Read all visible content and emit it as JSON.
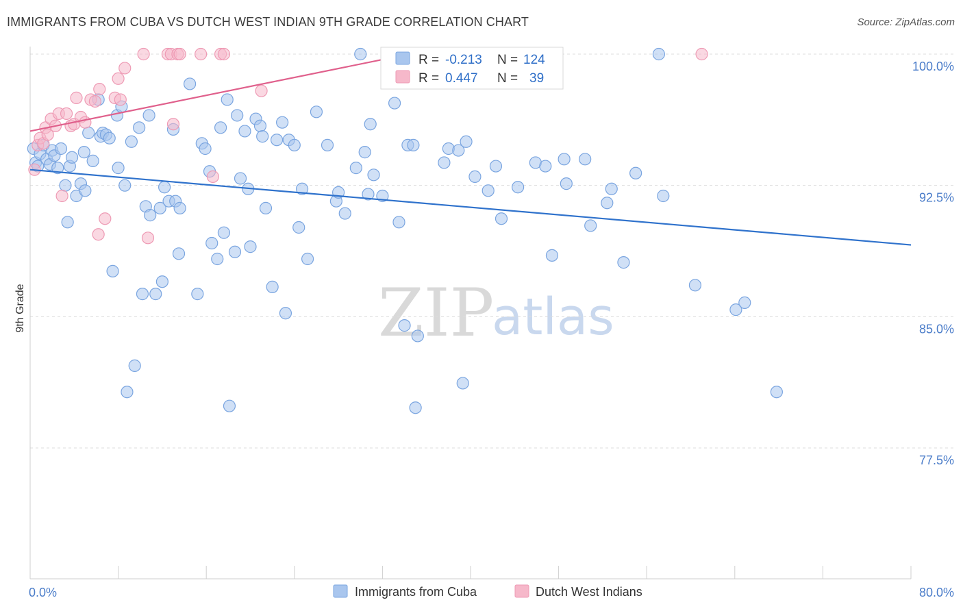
{
  "title": "IMMIGRANTS FROM CUBA VS DUTCH WEST INDIAN 9TH GRADE CORRELATION CHART",
  "source": "Source: ZipAtlas.com",
  "watermark": {
    "zip": "ZIP",
    "atlas": "atlas"
  },
  "colors": {
    "blue_fill": "#a9c6ee",
    "blue_stroke": "#7aa5e0",
    "blue_line": "#2f72cc",
    "pink_fill": "#f6b8ca",
    "pink_stroke": "#ee9ab4",
    "pink_line": "#e0608c",
    "tick_text": "#4a7cc9",
    "grid": "#dcdcdc"
  },
  "legend_stats": [
    {
      "r_label": "R =",
      "r_value": "-0.213",
      "n_label": "N =",
      "n_value": "124",
      "series": "blue"
    },
    {
      "r_label": "R =",
      "r_value": "0.447",
      "n_label": "N =",
      "n_value": "39",
      "series": "pink"
    }
  ],
  "bottom_legend": [
    "Immigrants from Cuba",
    "Dutch West Indians"
  ],
  "chart_data": {
    "type": "scatter",
    "title": "IMMIGRANTS FROM CUBA VS DUTCH WEST INDIAN 9TH GRADE CORRELATION CHART",
    "xlabel": "",
    "ylabel": "9th Grade",
    "xlim": [
      0,
      80
    ],
    "ylim": [
      70.0,
      101.5
    ],
    "x_tick_labels": [
      {
        "value": 0,
        "label": "0.0%"
      },
      {
        "value": 80,
        "label": "80.0%"
      }
    ],
    "y_tick_labels": [
      {
        "value": 100.0,
        "label": "100.0%"
      },
      {
        "value": 92.5,
        "label": "92.5%"
      },
      {
        "value": 85.0,
        "label": "85.0%"
      },
      {
        "value": 77.5,
        "label": "77.5%"
      }
    ],
    "series": [
      {
        "name": "Immigrants from Cuba",
        "color": "blue",
        "trend": {
          "x": [
            0,
            80
          ],
          "y": [
            93.4,
            89.1
          ]
        },
        "points": [
          [
            0.3,
            94.6
          ],
          [
            0.5,
            93.8
          ],
          [
            0.7,
            93.6
          ],
          [
            0.9,
            94.3
          ],
          [
            1.2,
            94.8
          ],
          [
            1.5,
            94.0
          ],
          [
            1.8,
            93.7
          ],
          [
            2.0,
            94.5
          ],
          [
            2.2,
            94.2
          ],
          [
            2.5,
            93.5
          ],
          [
            2.8,
            94.6
          ],
          [
            3.2,
            92.5
          ],
          [
            3.4,
            90.4
          ],
          [
            3.6,
            93.6
          ],
          [
            3.8,
            94.1
          ],
          [
            4.2,
            91.9
          ],
          [
            4.6,
            92.6
          ],
          [
            4.9,
            94.4
          ],
          [
            5.0,
            92.2
          ],
          [
            5.3,
            95.5
          ],
          [
            5.7,
            93.9
          ],
          [
            6.2,
            97.4
          ],
          [
            6.4,
            95.3
          ],
          [
            6.6,
            95.5
          ],
          [
            6.9,
            95.4
          ],
          [
            7.2,
            95.2
          ],
          [
            7.5,
            87.6
          ],
          [
            7.9,
            96.5
          ],
          [
            8.0,
            93.5
          ],
          [
            8.3,
            97.0
          ],
          [
            8.6,
            92.5
          ],
          [
            8.8,
            80.7
          ],
          [
            9.2,
            95.0
          ],
          [
            9.5,
            82.2
          ],
          [
            9.9,
            95.8
          ],
          [
            10.2,
            86.3
          ],
          [
            10.5,
            91.3
          ],
          [
            10.8,
            96.5
          ],
          [
            10.9,
            90.8
          ],
          [
            11.4,
            86.3
          ],
          [
            11.8,
            91.2
          ],
          [
            12.0,
            87.0
          ],
          [
            12.2,
            92.4
          ],
          [
            12.6,
            91.6
          ],
          [
            13.0,
            95.7
          ],
          [
            13.2,
            91.6
          ],
          [
            13.5,
            88.6
          ],
          [
            13.6,
            91.2
          ],
          [
            14.5,
            98.3
          ],
          [
            15.2,
            86.3
          ],
          [
            15.6,
            94.9
          ],
          [
            15.9,
            94.6
          ],
          [
            16.3,
            93.3
          ],
          [
            16.5,
            89.2
          ],
          [
            17.0,
            88.3
          ],
          [
            17.3,
            95.8
          ],
          [
            17.6,
            89.8
          ],
          [
            17.9,
            97.4
          ],
          [
            18.1,
            79.9
          ],
          [
            18.6,
            88.7
          ],
          [
            18.8,
            96.5
          ],
          [
            19.1,
            92.9
          ],
          [
            19.5,
            95.6
          ],
          [
            19.8,
            92.3
          ],
          [
            20.0,
            89.0
          ],
          [
            20.5,
            96.3
          ],
          [
            20.9,
            95.9
          ],
          [
            21.1,
            95.3
          ],
          [
            21.4,
            91.2
          ],
          [
            22.0,
            86.7
          ],
          [
            22.4,
            95.1
          ],
          [
            22.9,
            96.1
          ],
          [
            23.2,
            85.2
          ],
          [
            23.5,
            95.1
          ],
          [
            24.0,
            94.8
          ],
          [
            24.4,
            90.1
          ],
          [
            24.7,
            92.3
          ],
          [
            25.2,
            88.3
          ],
          [
            26.0,
            96.7
          ],
          [
            27.0,
            94.8
          ],
          [
            27.8,
            91.6
          ],
          [
            28.0,
            92.1
          ],
          [
            28.6,
            90.9
          ],
          [
            29.6,
            93.5
          ],
          [
            30.0,
            100.0
          ],
          [
            30.4,
            94.4
          ],
          [
            30.7,
            92.0
          ],
          [
            30.9,
            96.0
          ],
          [
            31.2,
            93.1
          ],
          [
            32.0,
            91.9
          ],
          [
            33.1,
            97.2
          ],
          [
            33.5,
            90.4
          ],
          [
            34.0,
            84.5
          ],
          [
            34.3,
            94.8
          ],
          [
            34.8,
            94.8
          ],
          [
            35.0,
            79.8
          ],
          [
            35.2,
            83.9
          ],
          [
            37.6,
            93.8
          ],
          [
            38.0,
            94.6
          ],
          [
            38.9,
            94.5
          ],
          [
            39.3,
            81.2
          ],
          [
            39.6,
            95.0
          ],
          [
            40.4,
            93.0
          ],
          [
            41.6,
            92.2
          ],
          [
            42.3,
            93.6
          ],
          [
            42.8,
            90.6
          ],
          [
            44.3,
            92.4
          ],
          [
            45.9,
            93.8
          ],
          [
            46.8,
            93.6
          ],
          [
            47.4,
            88.5
          ],
          [
            48.5,
            94.0
          ],
          [
            48.7,
            92.6
          ],
          [
            50.4,
            94.0
          ],
          [
            50.9,
            90.2
          ],
          [
            52.4,
            91.5
          ],
          [
            52.8,
            92.3
          ],
          [
            53.9,
            88.1
          ],
          [
            55.0,
            93.2
          ],
          [
            57.1,
            100.0
          ],
          [
            57.5,
            91.9
          ],
          [
            60.4,
            86.8
          ],
          [
            64.1,
            85.4
          ],
          [
            64.9,
            85.8
          ],
          [
            67.8,
            80.7
          ]
        ]
      },
      {
        "name": "Dutch West Indians",
        "color": "pink",
        "trend": {
          "x": [
            0,
            36
          ],
          "y": [
            95.6,
            100.2
          ]
        },
        "points": [
          [
            0.4,
            93.4
          ],
          [
            0.7,
            94.8
          ],
          [
            0.9,
            95.2
          ],
          [
            1.2,
            94.9
          ],
          [
            1.4,
            95.8
          ],
          [
            1.6,
            95.4
          ],
          [
            1.9,
            96.3
          ],
          [
            2.3,
            95.9
          ],
          [
            2.6,
            96.6
          ],
          [
            2.9,
            91.9
          ],
          [
            3.3,
            96.6
          ],
          [
            3.7,
            95.9
          ],
          [
            4.0,
            96.0
          ],
          [
            4.2,
            97.5
          ],
          [
            4.6,
            96.4
          ],
          [
            5.0,
            96.1
          ],
          [
            5.5,
            97.4
          ],
          [
            5.9,
            97.3
          ],
          [
            6.2,
            89.7
          ],
          [
            6.3,
            98.0
          ],
          [
            6.8,
            90.6
          ],
          [
            7.7,
            97.5
          ],
          [
            8.0,
            98.6
          ],
          [
            8.2,
            97.4
          ],
          [
            8.6,
            99.2
          ],
          [
            10.3,
            100.0
          ],
          [
            10.7,
            89.5
          ],
          [
            12.5,
            100.0
          ],
          [
            12.8,
            100.0
          ],
          [
            13.0,
            96.0
          ],
          [
            13.4,
            100.0
          ],
          [
            13.6,
            100.0
          ],
          [
            15.5,
            100.0
          ],
          [
            16.6,
            93.0
          ],
          [
            17.3,
            100.0
          ],
          [
            17.6,
            100.0
          ],
          [
            21.0,
            97.9
          ],
          [
            35.5,
            100.0
          ],
          [
            61.0,
            100.0
          ]
        ]
      }
    ]
  }
}
